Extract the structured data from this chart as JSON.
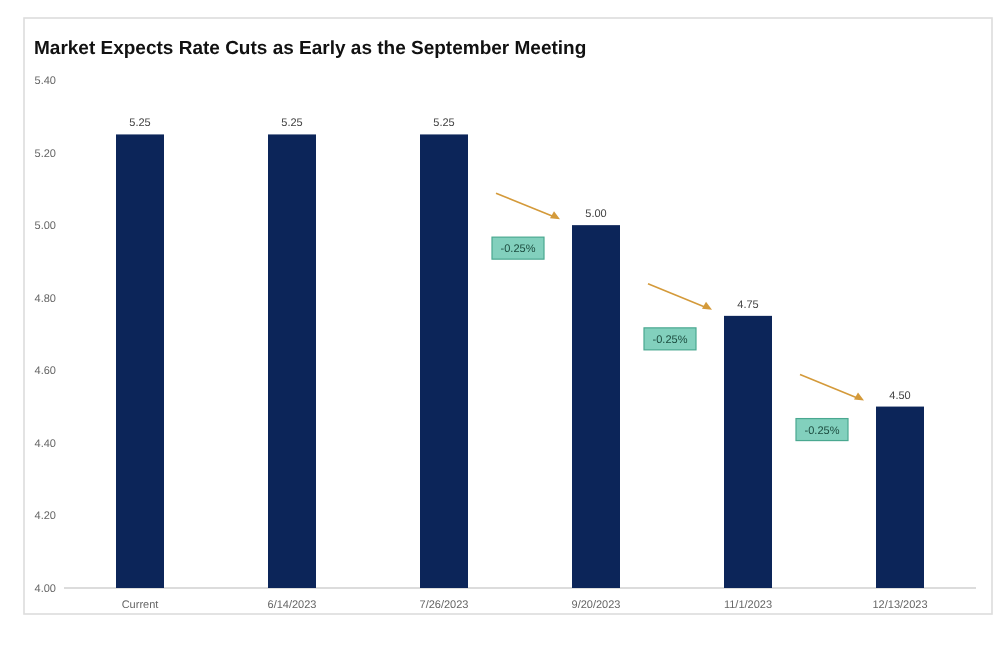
{
  "chart_data": {
    "type": "bar",
    "title": "Market Expects Rate Cuts as Early as the September Meeting",
    "categories": [
      "Current",
      "6/14/2023",
      "7/26/2023",
      "9/20/2023",
      "11/1/2023",
      "12/13/2023"
    ],
    "values": [
      5.25,
      5.25,
      5.25,
      5.0,
      4.75,
      4.5
    ],
    "value_labels": [
      "5.25",
      "5.25",
      "5.25",
      "5.00",
      "4.75",
      "4.50"
    ],
    "color": "#0c2559",
    "ylim": [
      4.0,
      5.4
    ],
    "yticks": [
      {
        "value": 4.0,
        "label": "4.00"
      },
      {
        "value": 4.2,
        "label": "4.20"
      },
      {
        "value": 4.4,
        "label": "4.40"
      },
      {
        "value": 4.6,
        "label": "4.60"
      },
      {
        "value": 4.8,
        "label": "4.80"
      },
      {
        "value": 5.0,
        "label": "5.00"
      },
      {
        "value": 5.2,
        "label": "5.20"
      },
      {
        "value": 5.4,
        "label": "5.40"
      }
    ],
    "grid": false,
    "annotations": [
      "-0.25%",
      "-0.25%",
      "-0.25%"
    ]
  }
}
